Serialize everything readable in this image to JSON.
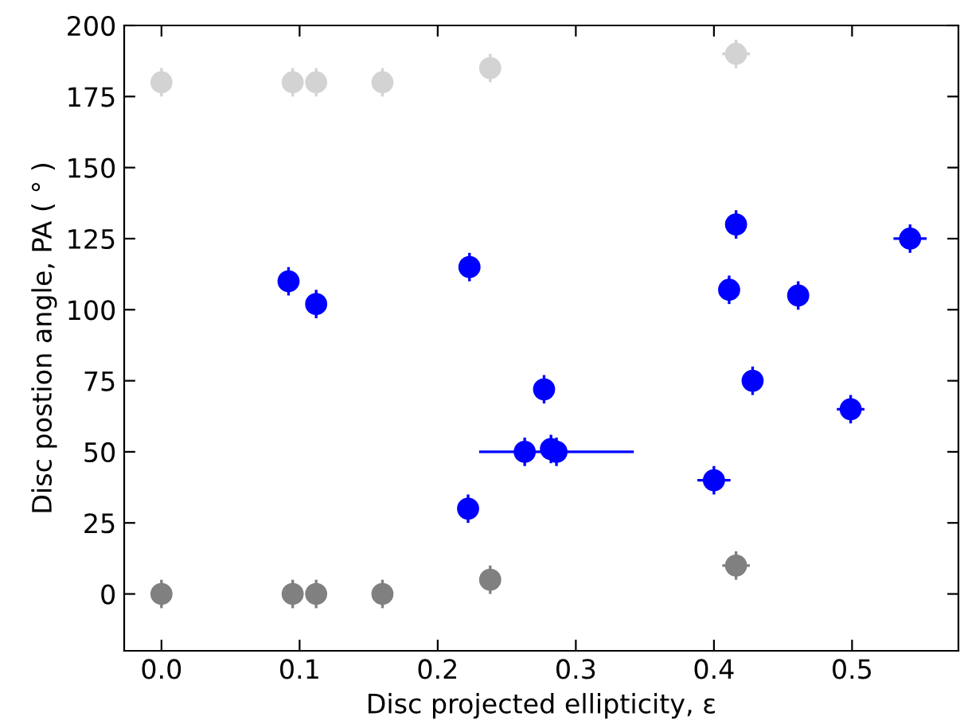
{
  "chart_data": {
    "type": "scatter",
    "xlabel": "Disc projected ellipticity, ε",
    "ylabel": "Disc postion angle, PA ( ° )",
    "xlim": [
      -0.027,
      0.577
    ],
    "xticks": [
      {
        "value": 0,
        "label": "0.0"
      },
      0.1,
      0.2,
      0.3,
      0.4,
      0.5
    ],
    "ylim": [
      -20,
      200
    ],
    "yticks": [
      0,
      25,
      50,
      75,
      100,
      125,
      150,
      175,
      200
    ],
    "marker": "circle",
    "series": [
      {
        "color": "#d3d3d3",
        "x": [
          0.0,
          0.095,
          0.112,
          0.16,
          0.238,
          0.416
        ],
        "values": [
          180,
          180,
          180,
          180,
          185,
          190
        ],
        "errors": [
          5,
          5,
          5,
          5,
          5,
          5
        ],
        "xerrors": [
          null,
          null,
          null,
          null,
          null,
          0.01
        ]
      },
      {
        "color": "#0000ff",
        "x": [
          0.092,
          0.112,
          0.222,
          0.223,
          0.263,
          0.277,
          0.282,
          0.286,
          0.4,
          0.411,
          0.416,
          0.428,
          0.461,
          0.499,
          0.542
        ],
        "values": [
          110,
          102,
          30,
          115,
          50,
          72,
          51,
          50,
          40,
          107,
          130,
          75,
          105,
          65,
          125
        ],
        "errors": [
          5,
          5,
          5,
          5,
          5,
          5,
          5,
          5,
          5,
          5,
          5,
          5,
          5,
          5,
          5
        ],
        "xerrors": [
          null,
          null,
          null,
          null,
          null,
          null,
          null,
          0.056,
          0.012,
          null,
          null,
          null,
          null,
          0.01,
          0.012
        ]
      },
      {
        "color": "#808080",
        "x": [
          0.0,
          0.095,
          0.112,
          0.16,
          0.238,
          0.416
        ],
        "values": [
          0,
          0,
          0,
          0,
          5,
          10
        ],
        "errors": [
          5,
          5,
          5,
          5,
          5,
          5
        ],
        "xerrors": [
          null,
          null,
          null,
          null,
          null,
          0.01
        ]
      }
    ]
  }
}
